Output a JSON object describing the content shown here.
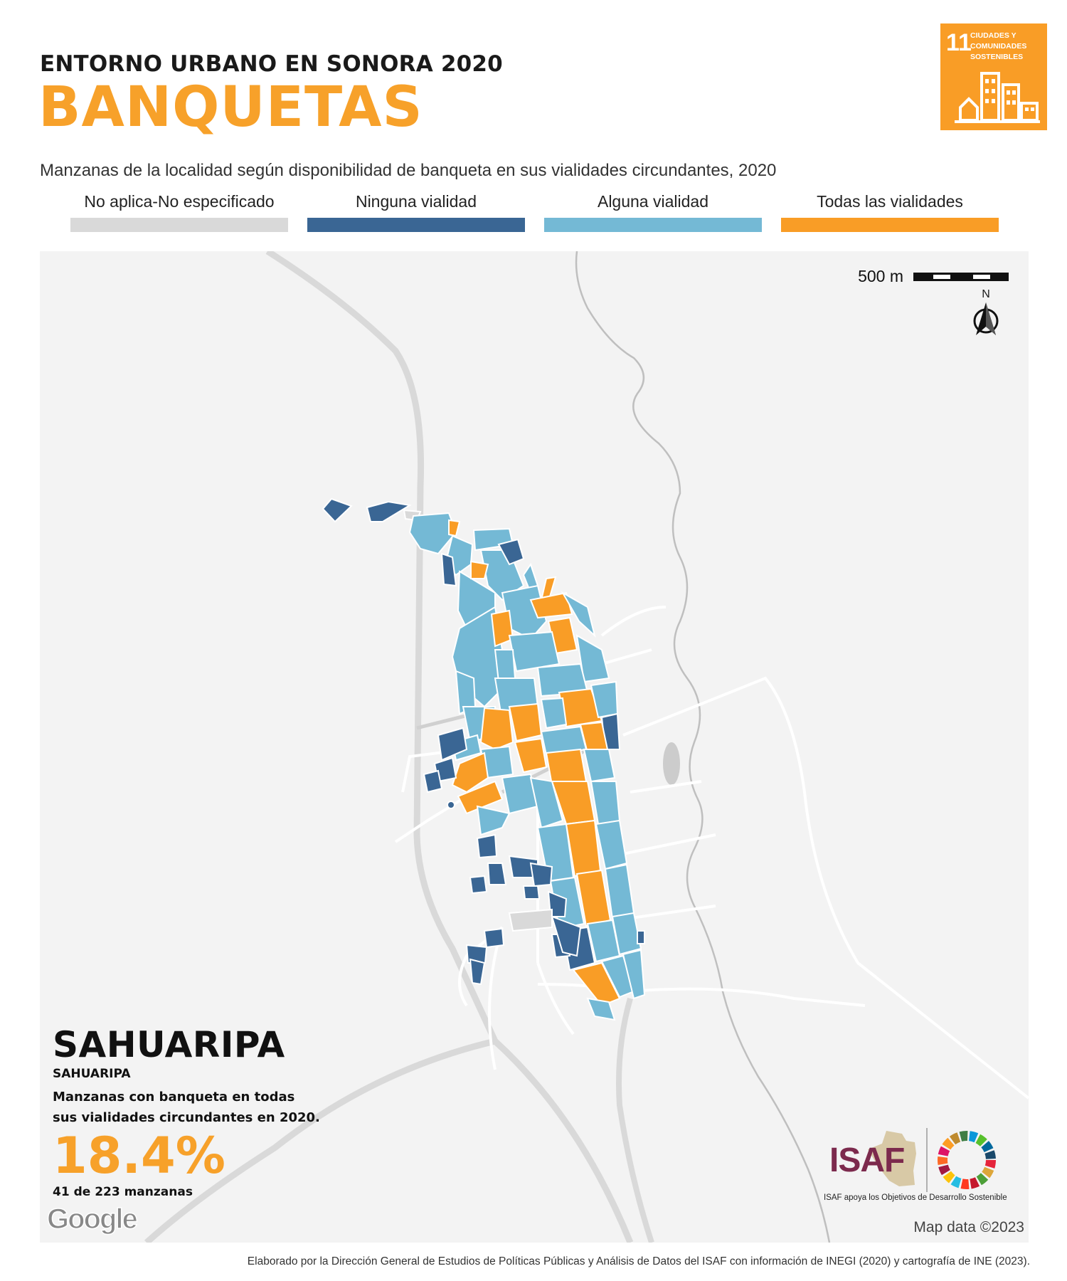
{
  "header": {
    "supertitle": "ENTORNO URBANO EN SONORA 2020",
    "title": "BANQUETAS",
    "subtitle": "Manzanas de la localidad según disponibilidad de banqueta en sus vialidades circundantes, 2020"
  },
  "legend": [
    {
      "label": "No aplica-No especificado",
      "color": "#d9d9d9"
    },
    {
      "label": "Ninguna vialidad",
      "color": "#3a6694"
    },
    {
      "label": "Alguna vialidad",
      "color": "#74b9d5"
    },
    {
      "label": "Todas las vialidades",
      "color": "#f99d26"
    }
  ],
  "sdg_badge": {
    "number": "11",
    "lines": [
      "CIUDADES Y",
      "COMUNIDADES",
      "SOSTENIBLES"
    ],
    "icon": "city-buildings-icon",
    "color": "#f99d26"
  },
  "map": {
    "scale_label": "500 m",
    "north_label": "N",
    "attribution_logo": "Google",
    "map_data": "Map data ©2023"
  },
  "locality": {
    "name": "SAHUARIPA",
    "municipality": "SAHUARIPA",
    "description": "Manzanas con banqueta en todas sus vialidades circundantes en 2020.",
    "percentage": "18.4%",
    "count_text": "41 de 223 manzanas"
  },
  "logos": {
    "isaf_word": "ISAF",
    "isaf_tagline": "ISAF apoya los Objetivos de Desarrollo Sostenible",
    "sdg_wheel": "sdg-wheel-icon"
  },
  "footer": "Elaborado por la Dirección General de Estudios de Políticas Públicas y Análisis de Datos del ISAF con información de INEGI (2020) y cartografía de INE (2023)."
}
